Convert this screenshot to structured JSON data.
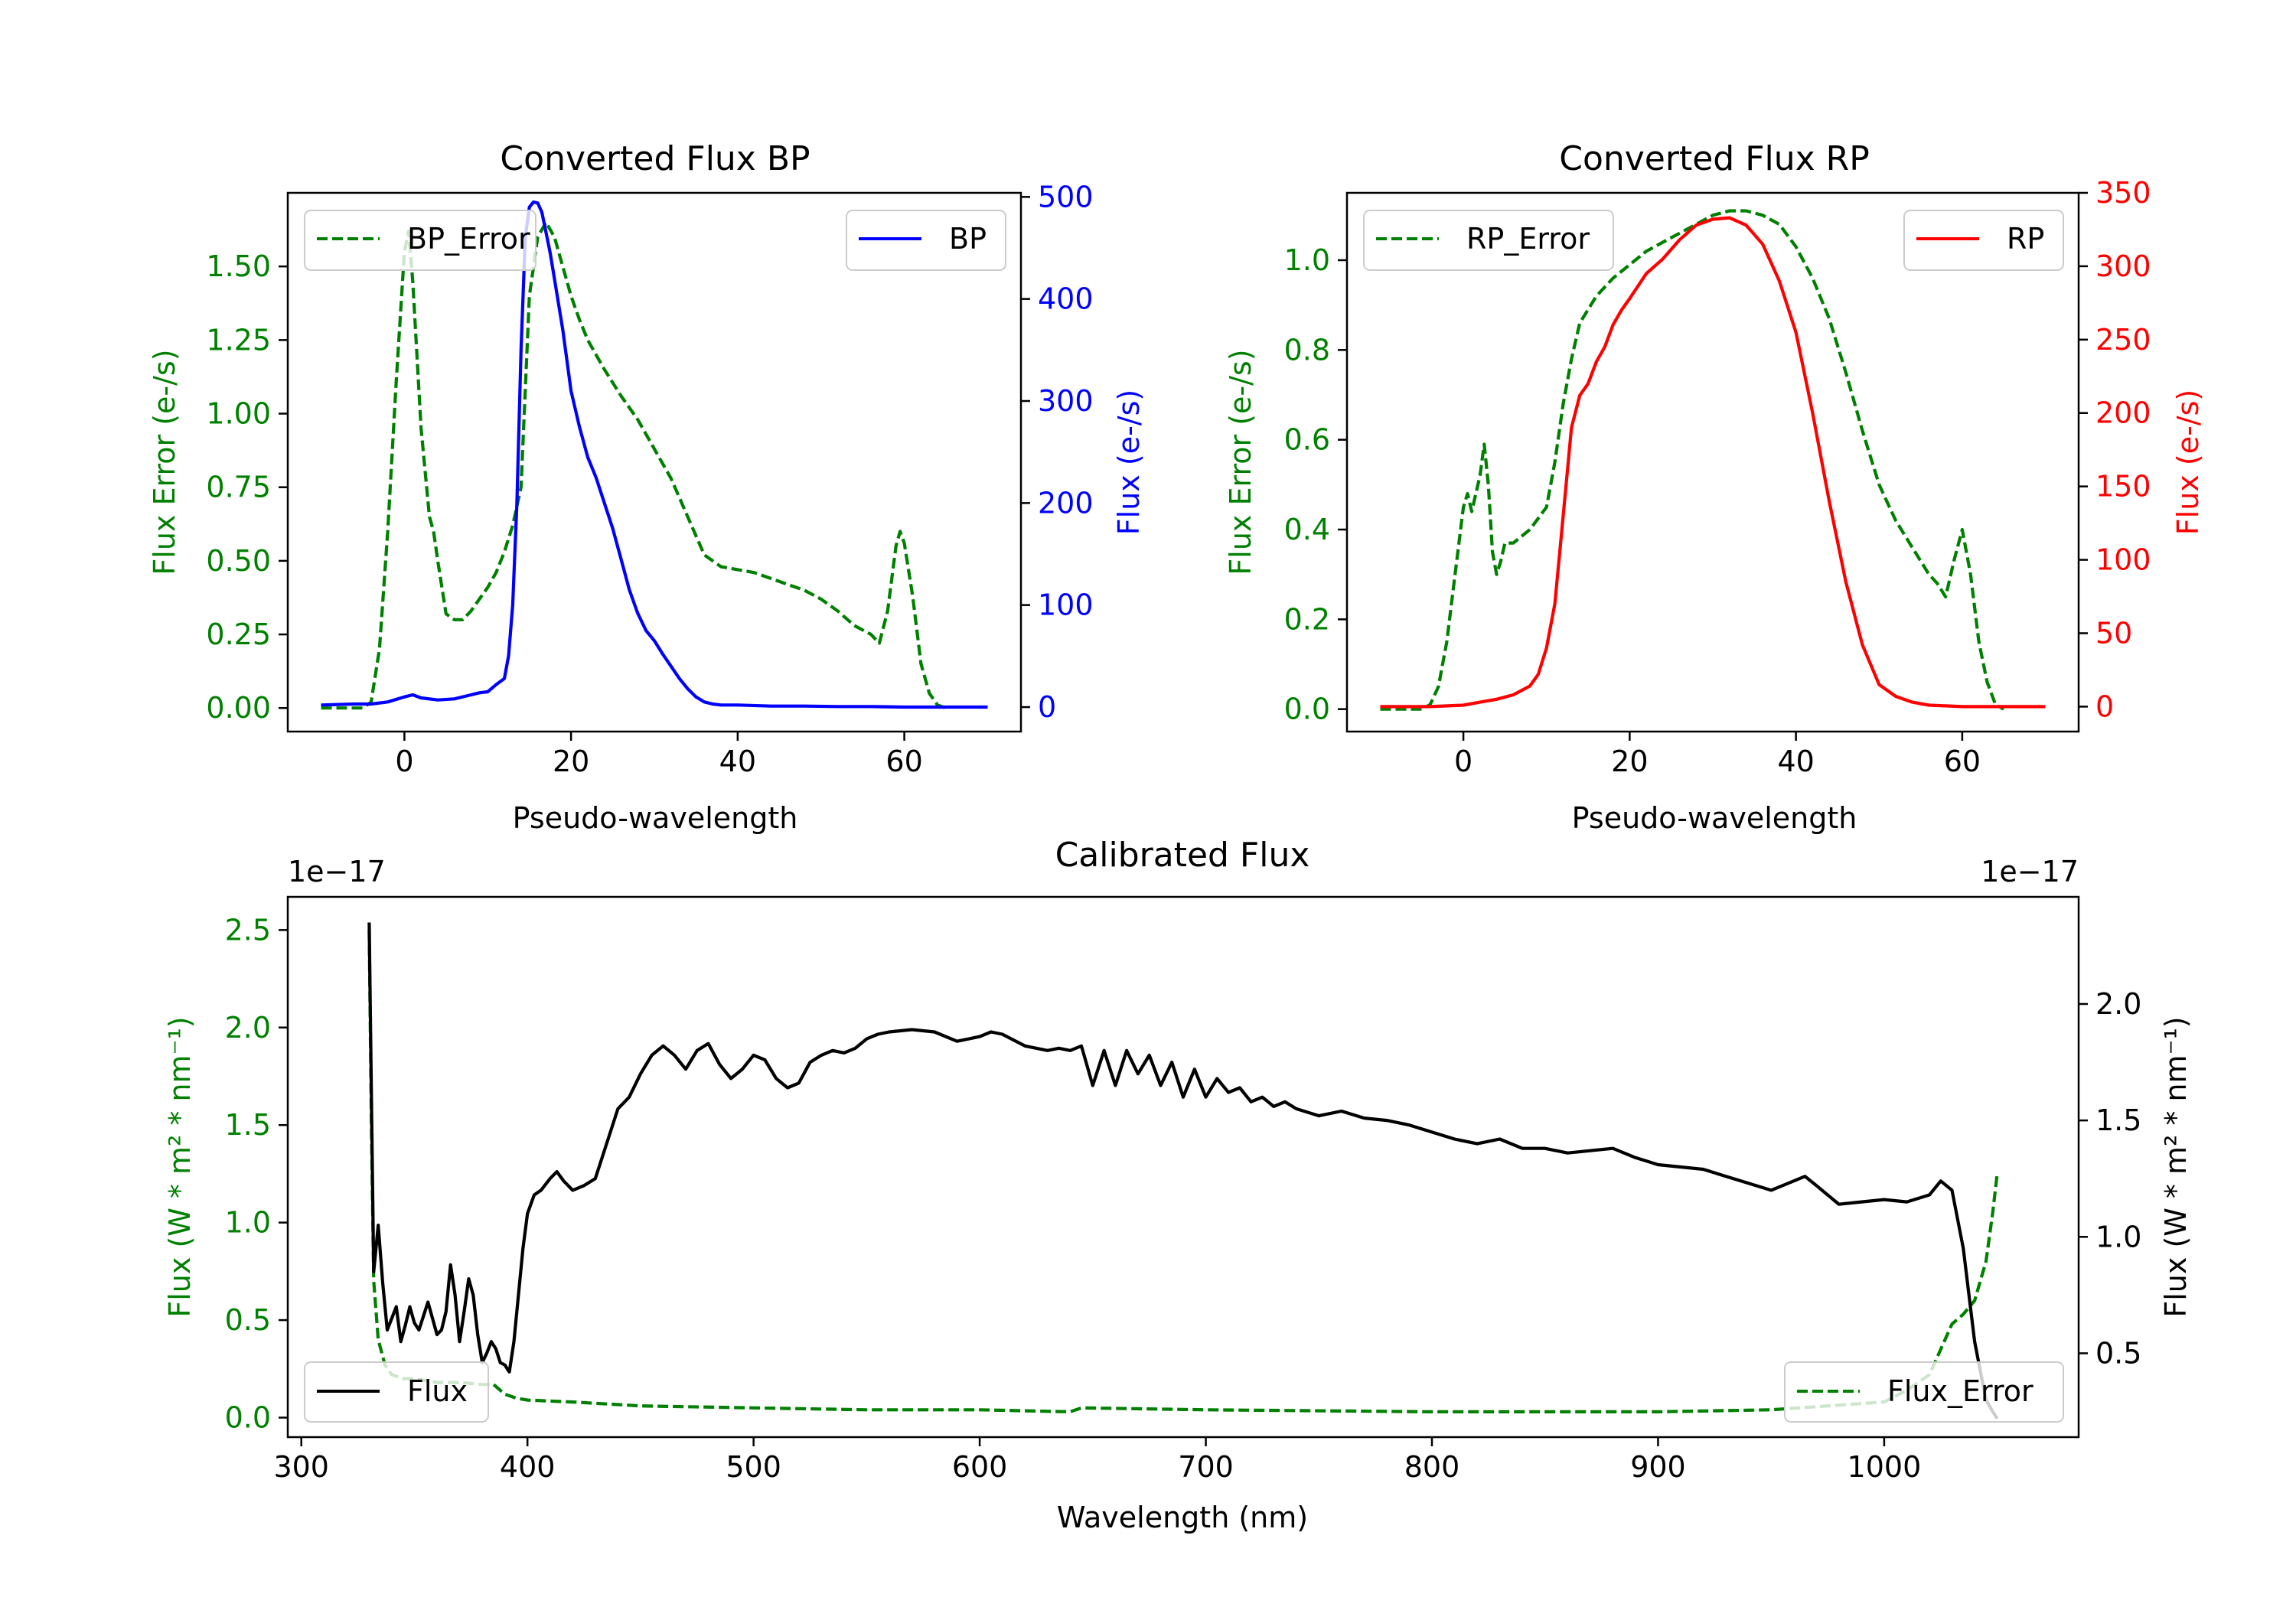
{
  "colors": {
    "error": "#008000",
    "bp": "#0000ff",
    "rp": "#ff0000",
    "flux": "#000000"
  },
  "chart_data": [
    {
      "id": "bp",
      "type": "line",
      "title": "Converted Flux BP",
      "xlabel": "Pseudo-wavelength",
      "ylabel_left": "Flux Error (e-/s)",
      "ylabel_right": "Flux (e-/s)",
      "xlim": [
        -14,
        74
      ],
      "ylim_left": [
        -0.08,
        1.75
      ],
      "ylim_right": [
        -24,
        504
      ],
      "xticks": [
        0,
        20,
        40,
        60
      ],
      "xtick_labels": [
        "0",
        "20",
        "40",
        "60"
      ],
      "yticks_left": [
        0.0,
        0.25,
        0.5,
        0.75,
        1.0,
        1.25,
        1.5
      ],
      "ytick_labels_left": [
        "0.00",
        "0.25",
        "0.50",
        "0.75",
        "1.00",
        "1.25",
        "1.50"
      ],
      "yticks_right": [
        0,
        100,
        200,
        300,
        400,
        500
      ],
      "ytick_labels_right": [
        "0",
        "100",
        "200",
        "300",
        "400",
        "500"
      ],
      "legend_left": "BP_Error",
      "legend_right": "BP",
      "series": [
        {
          "name": "BP_Error",
          "axis": "left",
          "style": "dashed",
          "color": "#008000",
          "x": [
            -10,
            -5,
            -4,
            -3,
            -2,
            -1,
            0,
            0.5,
            1,
            2,
            3,
            3.5,
            4,
            5,
            6,
            7,
            8,
            9,
            10,
            11,
            12,
            13,
            14,
            15,
            16,
            17,
            18,
            19,
            20,
            21,
            22,
            24,
            26,
            28,
            30,
            32,
            34,
            36,
            38,
            40,
            42,
            44,
            46,
            48,
            50,
            52,
            54,
            56,
            57,
            58,
            59,
            59.5,
            60,
            61,
            62,
            63,
            64,
            65
          ],
          "y": [
            0.0,
            0.0,
            0.02,
            0.2,
            0.6,
            1.1,
            1.55,
            1.62,
            1.45,
            0.95,
            0.65,
            0.6,
            0.5,
            0.32,
            0.3,
            0.3,
            0.33,
            0.37,
            0.41,
            0.46,
            0.53,
            0.62,
            0.75,
            1.4,
            1.6,
            1.65,
            1.6,
            1.5,
            1.4,
            1.32,
            1.25,
            1.15,
            1.06,
            0.98,
            0.88,
            0.78,
            0.65,
            0.52,
            0.48,
            0.47,
            0.46,
            0.44,
            0.42,
            0.4,
            0.37,
            0.33,
            0.28,
            0.25,
            0.22,
            0.33,
            0.55,
            0.6,
            0.56,
            0.38,
            0.15,
            0.05,
            0.01,
            0.0
          ]
        },
        {
          "name": "BP",
          "axis": "right",
          "style": "solid",
          "color": "#0000ff",
          "x": [
            -10,
            -6,
            -4,
            -2,
            0,
            1,
            2,
            4,
            6,
            8,
            9,
            10,
            11,
            12,
            12.5,
            13,
            13.5,
            14,
            14.5,
            15,
            15.5,
            16,
            16.5,
            17,
            17.5,
            18,
            19,
            20,
            21,
            22,
            23,
            24,
            25,
            26,
            27,
            28,
            29,
            30,
            31,
            32,
            33,
            34,
            35,
            36,
            37,
            38,
            40,
            44,
            48,
            52,
            56,
            60,
            64,
            68,
            70
          ],
          "y": [
            2,
            3,
            3,
            5,
            10,
            12,
            9,
            7,
            8,
            12,
            14,
            15,
            22,
            28,
            50,
            100,
            200,
            350,
            460,
            490,
            495,
            494,
            485,
            465,
            445,
            420,
            370,
            310,
            275,
            245,
            225,
            200,
            175,
            145,
            115,
            92,
            75,
            65,
            52,
            40,
            28,
            18,
            10,
            5,
            3,
            2,
            2,
            1,
            1,
            0.5,
            0.5,
            0,
            0,
            0,
            0
          ]
        }
      ]
    },
    {
      "id": "rp",
      "type": "line",
      "title": "Converted Flux RP",
      "xlabel": "Pseudo-wavelength",
      "ylabel_left": "Flux Error (e-/s)",
      "ylabel_right": "Flux (e-/s)",
      "xlim": [
        -14,
        74
      ],
      "ylim_left": [
        -0.05,
        1.15
      ],
      "ylim_right": [
        -17,
        350
      ],
      "xticks": [
        0,
        20,
        40,
        60
      ],
      "xtick_labels": [
        "0",
        "20",
        "40",
        "60"
      ],
      "yticks_left": [
        0.0,
        0.2,
        0.4,
        0.6,
        0.8,
        1.0
      ],
      "ytick_labels_left": [
        "0.0",
        "0.2",
        "0.4",
        "0.6",
        "0.8",
        "1.0"
      ],
      "yticks_right": [
        0,
        50,
        100,
        150,
        200,
        250,
        300,
        350
      ],
      "ytick_labels_right": [
        "0",
        "50",
        "100",
        "150",
        "200",
        "250",
        "300",
        "350"
      ],
      "legend_left": "RP_Error",
      "legend_right": "RP",
      "series": [
        {
          "name": "RP_Error",
          "axis": "left",
          "style": "dashed",
          "color": "#008000",
          "x": [
            -10,
            -5,
            -4,
            -3,
            -2,
            -1,
            0,
            0.5,
            1,
            2,
            2.5,
            3,
            3.5,
            4,
            4.5,
            5,
            6,
            8,
            10,
            11,
            12,
            13,
            14,
            16,
            18,
            20,
            22,
            24,
            26,
            28,
            30,
            32,
            34,
            36,
            38,
            40,
            42,
            44,
            46,
            48,
            50,
            52,
            54,
            55,
            56,
            57,
            58,
            59,
            60,
            61,
            62,
            63,
            64,
            65
          ],
          "y": [
            0.0,
            0.0,
            0.01,
            0.05,
            0.15,
            0.3,
            0.45,
            0.48,
            0.44,
            0.52,
            0.59,
            0.5,
            0.35,
            0.3,
            0.33,
            0.37,
            0.37,
            0.4,
            0.45,
            0.55,
            0.68,
            0.78,
            0.86,
            0.92,
            0.96,
            0.99,
            1.02,
            1.04,
            1.06,
            1.08,
            1.1,
            1.11,
            1.11,
            1.1,
            1.08,
            1.03,
            0.96,
            0.87,
            0.75,
            0.62,
            0.5,
            0.42,
            0.36,
            0.33,
            0.3,
            0.28,
            0.25,
            0.33,
            0.4,
            0.3,
            0.15,
            0.06,
            0.01,
            0.0
          ]
        },
        {
          "name": "RP",
          "axis": "right",
          "style": "solid",
          "color": "#ff0000",
          "x": [
            -10,
            -6,
            -4,
            0,
            2,
            4,
            6,
            8,
            9,
            10,
            11,
            12,
            13,
            14,
            15,
            16,
            17,
            18,
            19,
            20,
            22,
            24,
            26,
            28,
            30,
            32,
            34,
            36,
            38,
            40,
            42,
            44,
            46,
            48,
            50,
            52,
            54,
            56,
            58,
            60,
            62,
            64,
            66,
            70
          ],
          "y": [
            0,
            0,
            0,
            1,
            3,
            5,
            8,
            14,
            22,
            40,
            70,
            130,
            190,
            212,
            220,
            235,
            245,
            260,
            270,
            278,
            295,
            305,
            318,
            328,
            332,
            333,
            328,
            315,
            290,
            255,
            200,
            140,
            85,
            42,
            15,
            7,
            3,
            1,
            0.5,
            0,
            0,
            0,
            0,
            0
          ]
        }
      ]
    },
    {
      "id": "calibrated",
      "type": "line",
      "title": "Calibrated Flux",
      "xlabel": "Wavelength (nm)",
      "ylabel_left": "Flux (W * m² * nm⁻¹)",
      "ylabel_right": "Flux (W * m² * nm⁻¹)",
      "offset_left": "1e−17",
      "offset_right": "1e−17",
      "xlim": [
        294,
        1086
      ],
      "ylim_left": [
        -0.1,
        2.67
      ],
      "ylim_right": [
        0.14,
        2.46
      ],
      "xticks": [
        300,
        400,
        500,
        600,
        700,
        800,
        900,
        1000
      ],
      "xtick_labels": [
        "300",
        "400",
        "500",
        "600",
        "700",
        "800",
        "900",
        "1000"
      ],
      "yticks_left": [
        0.0,
        0.5,
        1.0,
        1.5,
        2.0,
        2.5
      ],
      "ytick_labels_left": [
        "0.0",
        "0.5",
        "1.0",
        "1.5",
        "2.0",
        "2.5"
      ],
      "yticks_right": [
        0.5,
        1.0,
        1.5,
        2.0
      ],
      "ytick_labels_right": [
        "0.5",
        "1.0",
        "1.5",
        "2.0"
      ],
      "legend_left": "Flux",
      "legend_right": "Flux_Error",
      "series": [
        {
          "name": "Flux_Error",
          "axis": "left",
          "style": "dashed",
          "color": "#008000",
          "x": [
            330,
            331,
            332,
            334,
            337,
            340,
            345,
            350,
            360,
            370,
            380,
            385,
            390,
            395,
            400,
            420,
            450,
            500,
            550,
            600,
            640,
            645,
            700,
            800,
            900,
            950,
            1000,
            1010,
            1020,
            1025,
            1030,
            1035,
            1040,
            1045,
            1048,
            1050
          ],
          "y": [
            2.5,
            1.5,
            0.7,
            0.4,
            0.27,
            0.22,
            0.2,
            0.2,
            0.18,
            0.18,
            0.17,
            0.17,
            0.12,
            0.1,
            0.09,
            0.08,
            0.06,
            0.05,
            0.04,
            0.04,
            0.03,
            0.05,
            0.04,
            0.03,
            0.03,
            0.04,
            0.08,
            0.14,
            0.22,
            0.35,
            0.48,
            0.53,
            0.6,
            0.8,
            1.05,
            1.25
          ]
        },
        {
          "name": "Flux",
          "axis": "right",
          "style": "solid",
          "color": "#000000",
          "x": [
            330,
            331,
            332,
            334,
            336,
            338,
            340,
            342,
            344,
            346,
            348,
            350,
            352,
            354,
            356,
            358,
            360,
            362,
            364,
            366,
            368,
            370,
            372,
            374,
            376,
            378,
            380,
            382,
            384,
            386,
            388,
            390,
            392,
            394,
            396,
            398,
            400,
            403,
            406,
            410,
            413,
            416,
            420,
            425,
            430,
            435,
            440,
            445,
            450,
            455,
            460,
            465,
            470,
            475,
            480,
            485,
            490,
            495,
            500,
            505,
            510,
            515,
            520,
            525,
            530,
            535,
            540,
            545,
            550,
            555,
            560,
            570,
            580,
            590,
            600,
            605,
            610,
            620,
            630,
            635,
            640,
            645,
            650,
            655,
            660,
            665,
            670,
            675,
            680,
            685,
            690,
            695,
            700,
            705,
            710,
            715,
            720,
            725,
            730,
            735,
            740,
            750,
            760,
            770,
            780,
            790,
            800,
            810,
            820,
            830,
            840,
            850,
            860,
            870,
            880,
            890,
            900,
            910,
            920,
            930,
            940,
            950,
            960,
            965,
            970,
            980,
            990,
            1000,
            1010,
            1020,
            1025,
            1030,
            1035,
            1040,
            1045,
            1048,
            1050
          ],
          "y": [
            2.35,
            1.6,
            0.85,
            1.05,
            0.8,
            0.6,
            0.65,
            0.7,
            0.55,
            0.62,
            0.7,
            0.63,
            0.6,
            0.66,
            0.72,
            0.65,
            0.58,
            0.6,
            0.68,
            0.88,
            0.75,
            0.55,
            0.68,
            0.82,
            0.75,
            0.58,
            0.46,
            0.5,
            0.55,
            0.52,
            0.46,
            0.45,
            0.42,
            0.55,
            0.75,
            0.95,
            1.1,
            1.18,
            1.2,
            1.25,
            1.28,
            1.24,
            1.2,
            1.22,
            1.25,
            1.4,
            1.55,
            1.6,
            1.7,
            1.78,
            1.82,
            1.78,
            1.72,
            1.8,
            1.83,
            1.74,
            1.68,
            1.72,
            1.78,
            1.76,
            1.68,
            1.64,
            1.66,
            1.75,
            1.78,
            1.8,
            1.79,
            1.81,
            1.85,
            1.87,
            1.88,
            1.89,
            1.88,
            1.84,
            1.86,
            1.88,
            1.87,
            1.82,
            1.8,
            1.81,
            1.8,
            1.82,
            1.65,
            1.8,
            1.65,
            1.8,
            1.7,
            1.78,
            1.65,
            1.75,
            1.6,
            1.72,
            1.6,
            1.68,
            1.62,
            1.64,
            1.58,
            1.6,
            1.56,
            1.58,
            1.55,
            1.52,
            1.54,
            1.51,
            1.5,
            1.48,
            1.45,
            1.42,
            1.4,
            1.42,
            1.38,
            1.38,
            1.36,
            1.37,
            1.38,
            1.34,
            1.31,
            1.3,
            1.29,
            1.26,
            1.23,
            1.2,
            1.24,
            1.26,
            1.22,
            1.14,
            1.15,
            1.16,
            1.15,
            1.18,
            1.24,
            1.2,
            0.95,
            0.55,
            0.3,
            0.25,
            0.22
          ]
        }
      ]
    }
  ]
}
